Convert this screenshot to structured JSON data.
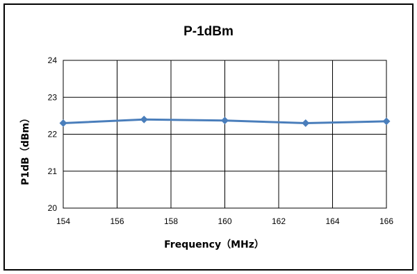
{
  "chart_data": {
    "type": "line",
    "title": "P-1dBm",
    "xlabel": "Frequency（MHz）",
    "ylabel": "P1dB（dBm）",
    "xlim": [
      154,
      166
    ],
    "ylim": [
      20,
      24
    ],
    "x_ticks": [
      154,
      156,
      158,
      160,
      162,
      164,
      166
    ],
    "y_ticks": [
      20,
      21,
      22,
      23,
      24
    ],
    "grid": true,
    "series": [
      {
        "x": [
          154,
          157,
          160,
          163,
          166
        ],
        "values": [
          22.3,
          22.4,
          22.37,
          22.3,
          22.35
        ],
        "color": "#4a7ebb",
        "marker": "diamond"
      }
    ]
  }
}
